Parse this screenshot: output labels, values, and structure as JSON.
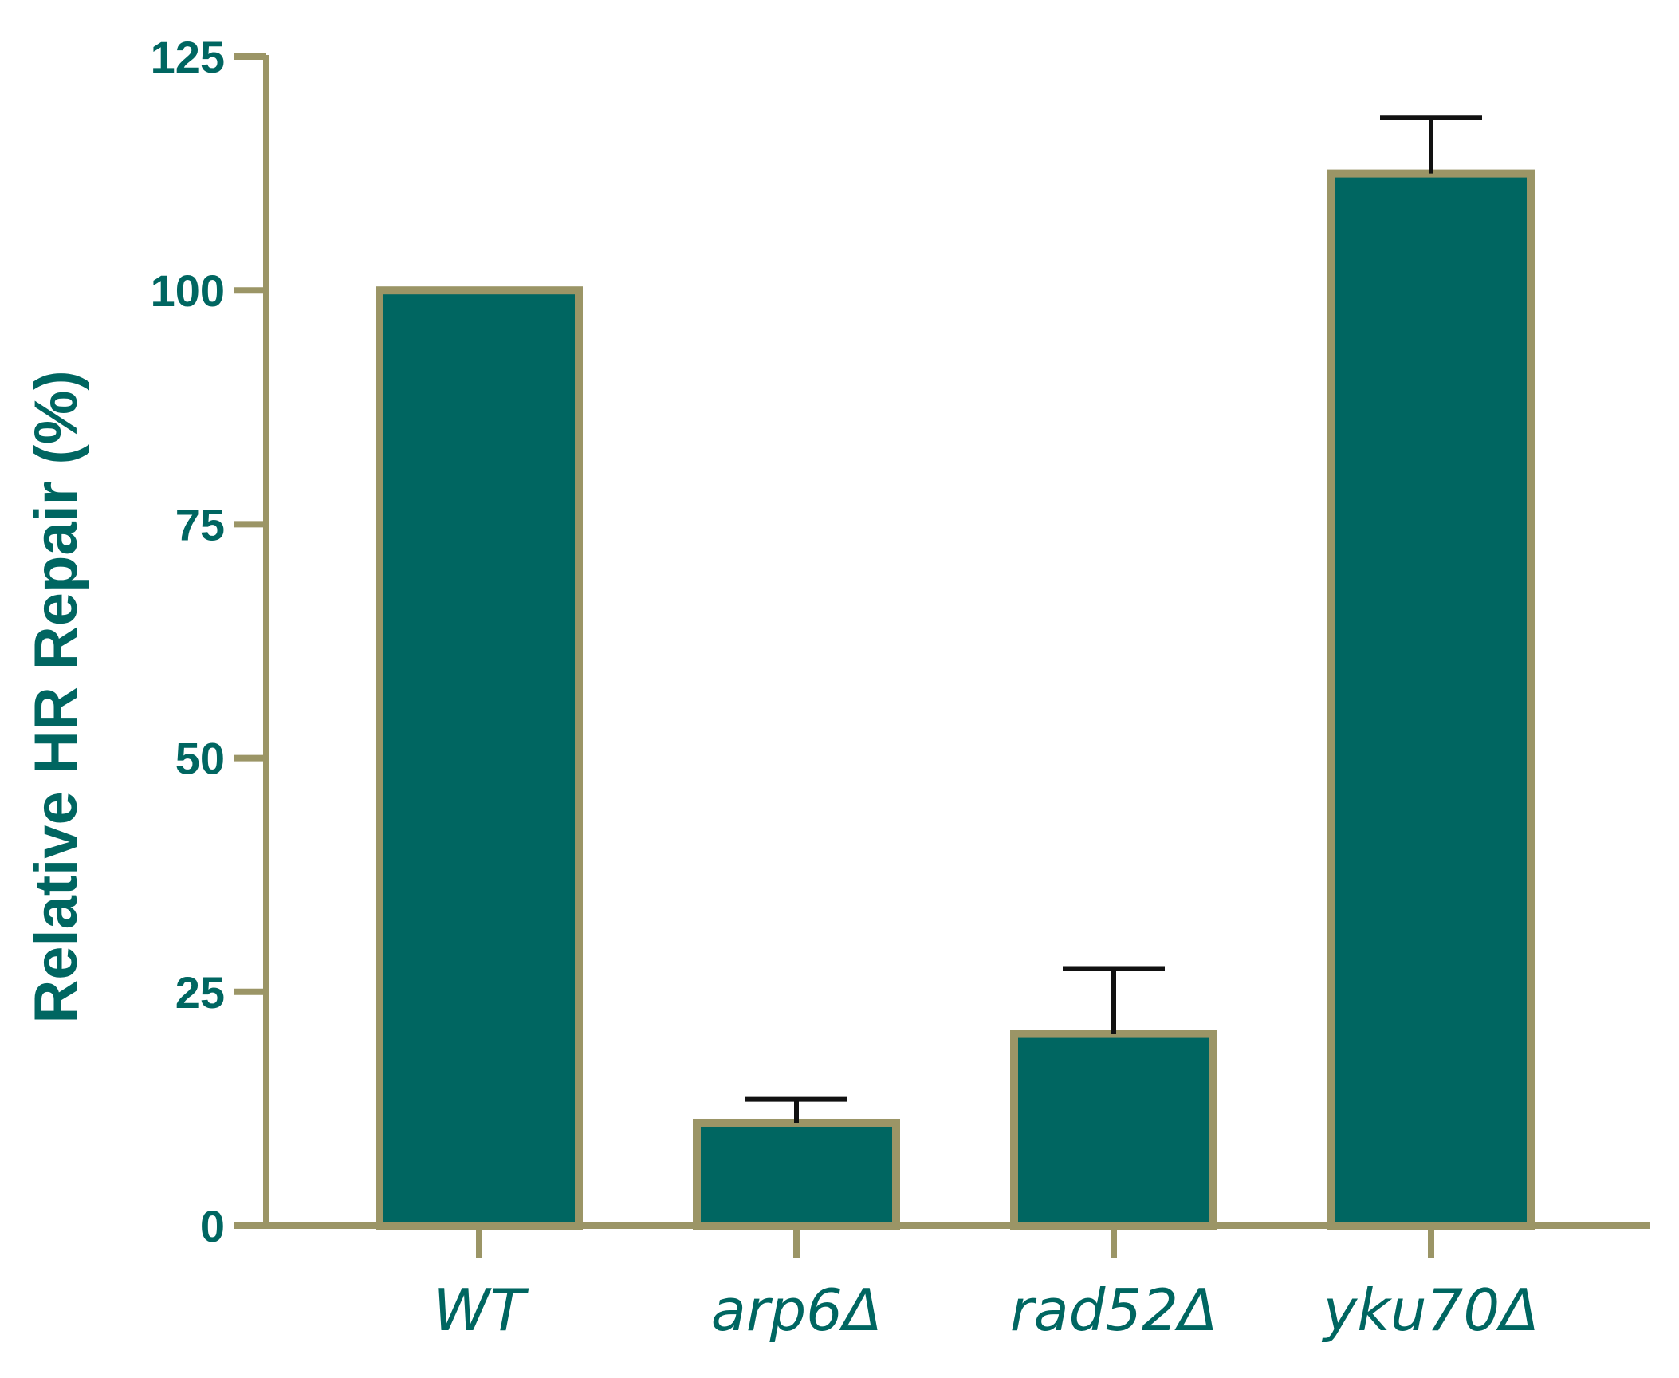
{
  "chart_data": {
    "type": "bar",
    "title": "",
    "xlabel": "",
    "ylabel": "Relative HR Repair  (%)",
    "ylim": [
      0,
      125
    ],
    "yticks": [
      0,
      25,
      50,
      75,
      100,
      125
    ],
    "ytick_labels": [
      "0",
      "25",
      "50",
      "75",
      "100",
      "125"
    ],
    "categories": [
      "WT",
      "arp6Δ",
      "rad52Δ",
      "yku70Δ"
    ],
    "values": [
      100,
      11,
      20.5,
      112.5
    ],
    "error_upper": [
      0,
      2.5,
      7,
      6
    ],
    "legend": "none",
    "grid": false
  },
  "colors": {
    "bar_fill": "#006661",
    "bar_edge": "#9b9566",
    "axis": "#9b9566",
    "error_bar": "#111111",
    "text": "#006661"
  }
}
